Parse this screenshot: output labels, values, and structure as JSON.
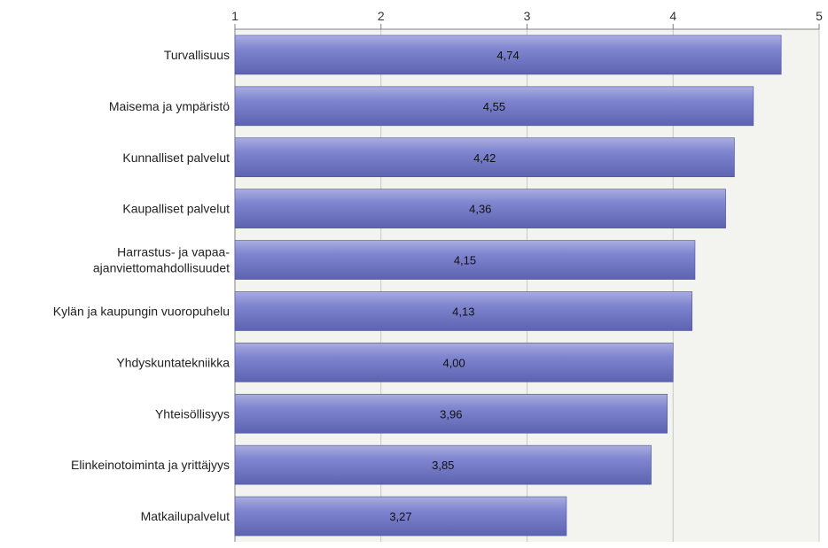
{
  "chart_data": {
    "type": "bar",
    "orientation": "horizontal",
    "title": "",
    "xlabel": "",
    "ylabel": "",
    "xlim": [
      1,
      5
    ],
    "x_ticks": [
      "1",
      "2",
      "3",
      "4",
      "5"
    ],
    "grid": true,
    "categories": [
      "Turvallisuus",
      "Maisema ja ympäristö",
      "Kunnalliset palvelut",
      "Kaupalliset palvelut",
      "Harrastus- ja vapaa-ajanviettomahdollisuudet",
      "Kylän ja kaupungin vuoropuhelu",
      "Yhdyskuntatekniikka",
      "Yhteisöllisyys",
      "Elinkeinotoiminta ja yrittäjyys",
      "Matkailupalvelut"
    ],
    "category_lines": [
      [
        "Turvallisuus"
      ],
      [
        "Maisema ja ympäristö"
      ],
      [
        "Kunnalliset palvelut"
      ],
      [
        "Kaupalliset palvelut"
      ],
      [
        "Harrastus- ja vapaa-",
        "ajanviettomahdollisuudet"
      ],
      [
        "Kylän ja kaupungin vuoropuhelu"
      ],
      [
        "Yhdyskuntatekniikka"
      ],
      [
        "Yhteisöllisyys"
      ],
      [
        "Elinkeinotoiminta ja yrittäjyys"
      ],
      [
        "Matkailupalvelut"
      ]
    ],
    "values": [
      4.74,
      4.55,
      4.42,
      4.36,
      4.15,
      4.13,
      4.0,
      3.96,
      3.85,
      3.27
    ],
    "value_labels": [
      "4,74",
      "4,55",
      "4,42",
      "4,36",
      "4,15",
      "4,13",
      "4,00",
      "3,96",
      "3,85",
      "3,27"
    ],
    "colors": {
      "bar_top": "#a9addf",
      "bar_mid": "#7f85cf",
      "bar_bottom": "#5d63b0",
      "bar_edge": "#4b51a0",
      "plot_bg": "#f3f3ef",
      "grid": "#c8c8c8",
      "axis": "#808080"
    }
  }
}
